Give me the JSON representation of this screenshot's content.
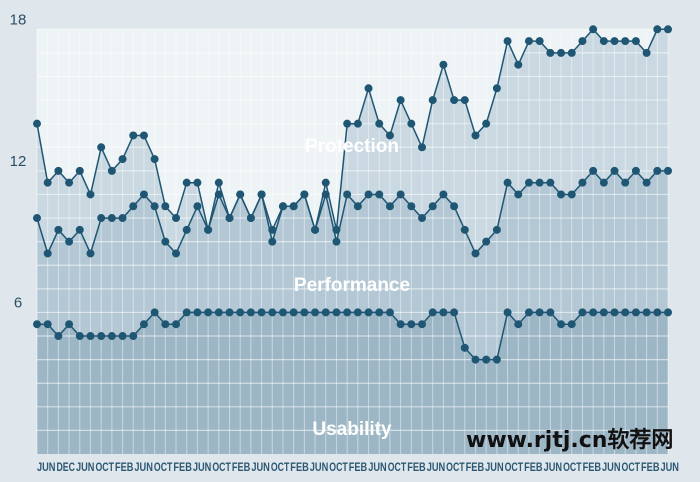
{
  "chart_data": {
    "type": "line",
    "title": "",
    "xlabel": "",
    "ylabel": "",
    "ylim": [
      0,
      18
    ],
    "yticks": [
      "6",
      "12",
      "18"
    ],
    "ytick_values": [
      6,
      12,
      18
    ],
    "grid": true,
    "x_tick_labels": [
      "JUN",
      "DEC",
      "JUN",
      "OCT",
      "FEB",
      "JUN",
      "OCT",
      "FEB",
      "JUN",
      "OCT",
      "FEB",
      "JUN",
      "OCT",
      "FEB",
      "JUN",
      "OCT",
      "FEB",
      "JUN",
      "OCT",
      "FEB",
      "JUN",
      "OCT",
      "FEB",
      "JUN",
      "OCT",
      "FEB",
      "JUN",
      "OCT",
      "FEB",
      "JUN",
      "OCT",
      "FEB",
      "JUN"
    ],
    "series": [
      {
        "name": "Protection",
        "values": [
          14,
          11.5,
          12,
          11.5,
          12,
          11,
          13,
          12,
          12.5,
          13.5,
          13.5,
          12.5,
          10.5,
          10,
          11.5,
          11.5,
          9.5,
          11.5,
          10,
          11,
          10,
          11,
          9.5,
          10.5,
          10.5,
          11,
          9.5,
          11.5,
          9.5,
          14,
          14,
          15.5,
          14,
          13.5,
          15,
          14,
          13,
          15,
          16.5,
          15,
          15,
          13.5,
          14,
          15.5,
          17.5,
          16.5,
          17.5,
          17.5,
          17,
          17,
          17,
          17.5,
          18,
          17.5,
          17.5,
          17.5,
          17.5,
          17,
          18,
          18
        ]
      },
      {
        "name": "Performance",
        "values": [
          10,
          8.5,
          9.5,
          9,
          9.5,
          8.5,
          10,
          10,
          10,
          10.5,
          11,
          10.5,
          9,
          8.5,
          9.5,
          10.5,
          9.5,
          11,
          10,
          11,
          10,
          11,
          9,
          10.5,
          10.5,
          11,
          9.5,
          11,
          9,
          11,
          10.5,
          11,
          11,
          10.5,
          11,
          10.5,
          10,
          10.5,
          11,
          10.5,
          9.5,
          8.5,
          9,
          9.5,
          11.5,
          11,
          11.5,
          11.5,
          11.5,
          11,
          11,
          11.5,
          12,
          11.5,
          12,
          11.5,
          12,
          11.5,
          12,
          12
        ]
      },
      {
        "name": "Usability",
        "values": [
          5.5,
          5.5,
          5,
          5.5,
          5,
          5,
          5,
          5,
          5,
          5,
          5.5,
          6,
          5.5,
          5.5,
          6,
          6,
          6,
          6,
          6,
          6,
          6,
          6,
          6,
          6,
          6,
          6,
          6,
          6,
          6,
          6,
          6,
          6,
          6,
          6.0,
          5.5,
          5.5,
          5.5,
          6,
          6,
          6,
          4.5,
          4,
          4,
          4,
          6,
          5.5,
          6,
          6,
          6,
          5.5,
          5.5,
          6,
          6,
          6,
          6,
          6,
          6,
          6,
          6,
          6
        ]
      }
    ],
    "colors": {
      "line": "#1f5673",
      "fill_protection": "#c9d8e1",
      "fill_performance": "#b3c8d4",
      "fill_usability": "#9db6c5",
      "plot_background": "#eef3f6",
      "grid": "#ffffff"
    }
  },
  "watermark": "www.rjtj.cn软荐网"
}
